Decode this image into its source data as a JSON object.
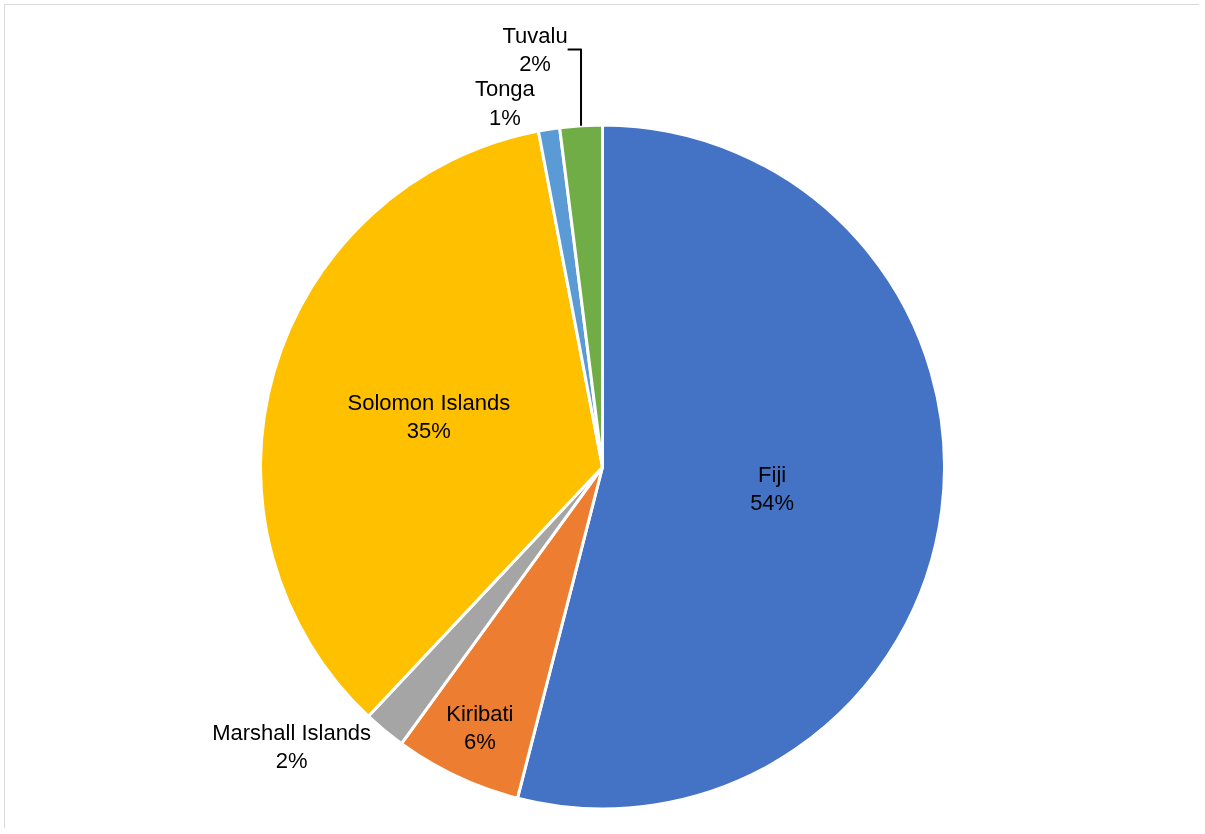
{
  "chart_data": {
    "type": "pie",
    "categories": [
      "Fiji",
      "Kiribati",
      "Marshall Islands",
      "Solomon Islands",
      "Tonga",
      "Tuvalu"
    ],
    "values": [
      54,
      6,
      2,
      35,
      1,
      2
    ],
    "value_labels": [
      "54%",
      "6%",
      "2%",
      "35%",
      "1%",
      "2%"
    ],
    "colors": [
      "#4472c4",
      "#ed7d31",
      "#a5a5a5",
      "#ffc000",
      "#5b9bd5",
      "#70ad47"
    ],
    "legend": false
  }
}
